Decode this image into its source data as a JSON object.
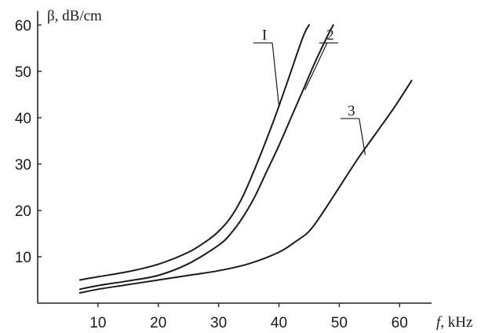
{
  "chart_data": {
    "type": "line",
    "ylabel": "β, dB/cm",
    "xlabel_symbol": "f",
    "xlabel_unit": ", kHz",
    "xlim": [
      0,
      64
    ],
    "ylim": [
      0,
      62
    ],
    "x_ticks": [
      10,
      20,
      30,
      40,
      50,
      60
    ],
    "y_ticks": [
      10,
      20,
      30,
      40,
      50,
      60
    ],
    "grid": false,
    "legend": "inline-labels",
    "series": [
      {
        "name": "I",
        "x": [
          7,
          10,
          15,
          20,
          25,
          28,
          30,
          32,
          34,
          36,
          38,
          40,
          42,
          44,
          45
        ],
        "y": [
          5,
          5.7,
          6.8,
          8.4,
          11,
          13.4,
          15.5,
          18.5,
          23,
          29,
          35.5,
          42.5,
          50,
          57.5,
          60
        ]
      },
      {
        "name": "2",
        "x": [
          7,
          10,
          15,
          20,
          25,
          30,
          32,
          34,
          36,
          38,
          40,
          42,
          44,
          46,
          48,
          49
        ],
        "y": [
          3,
          3.8,
          4.8,
          6,
          8.5,
          12.5,
          15,
          18.5,
          23,
          28.5,
          34,
          40,
          46,
          52,
          57.5,
          60
        ]
      },
      {
        "name": "3",
        "x": [
          7,
          10,
          15,
          20,
          25,
          30,
          35,
          40,
          43,
          45,
          47,
          50,
          53,
          56,
          59,
          62
        ],
        "y": [
          2.2,
          3,
          4,
          5,
          6,
          7,
          8.5,
          11,
          13.5,
          15.5,
          19,
          25,
          31,
          36.5,
          42,
          48
        ]
      }
    ],
    "labels": [
      {
        "text": "I",
        "label_x": 37.6,
        "label_y": 56.8,
        "point_x": 40,
        "point_y": 42.5
      },
      {
        "text": "2",
        "label_x": 48.5,
        "label_y": 56.8,
        "point_x": 44.3,
        "point_y": 46
      },
      {
        "text": "3",
        "label_x": 52,
        "label_y": 40.5,
        "point_x": 54.3,
        "point_y": 32
      }
    ]
  }
}
